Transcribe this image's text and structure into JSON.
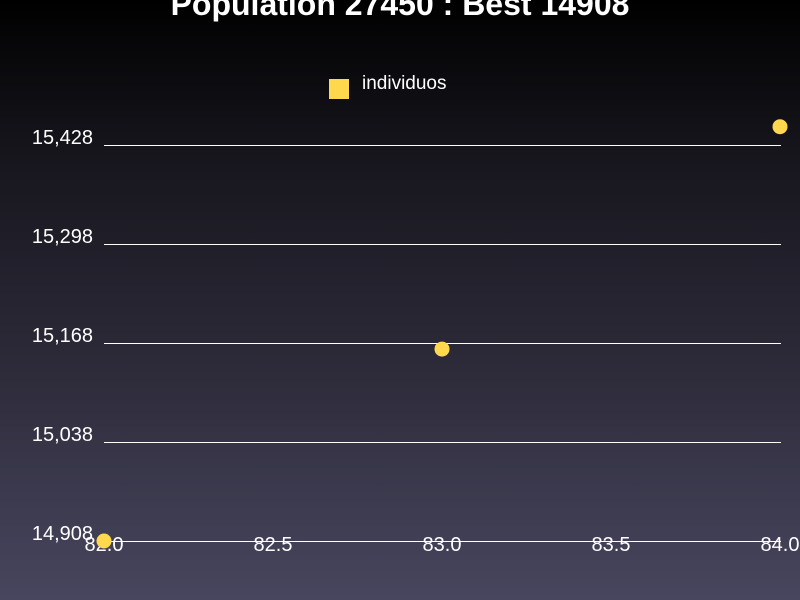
{
  "chart_data": {
    "type": "scatter",
    "title": "Population 27450 : Best 14908",
    "xlabel": "",
    "ylabel": "",
    "xlim": [
      82.0,
      84.0
    ],
    "ylim": [
      14908,
      15428
    ],
    "x_ticks": [
      82.0,
      82.5,
      83.0,
      83.5,
      84.0
    ],
    "x_tick_labels": [
      "82.0",
      "82.5",
      "83.0",
      "83.5",
      "84.0"
    ],
    "y_ticks": [
      14908,
      15038,
      15168,
      15298,
      15428
    ],
    "y_tick_labels": [
      "14,908",
      "15,038",
      "15,168",
      "15,298",
      "15,428"
    ],
    "grid": true,
    "legend_position": "top-center",
    "series": [
      {
        "name": "individuos",
        "color": "#ffd84d",
        "points": [
          {
            "x": 82.0,
            "y": 14908
          },
          {
            "x": 83.0,
            "y": 15160
          },
          {
            "x": 84.0,
            "y": 15452
          }
        ]
      }
    ]
  }
}
